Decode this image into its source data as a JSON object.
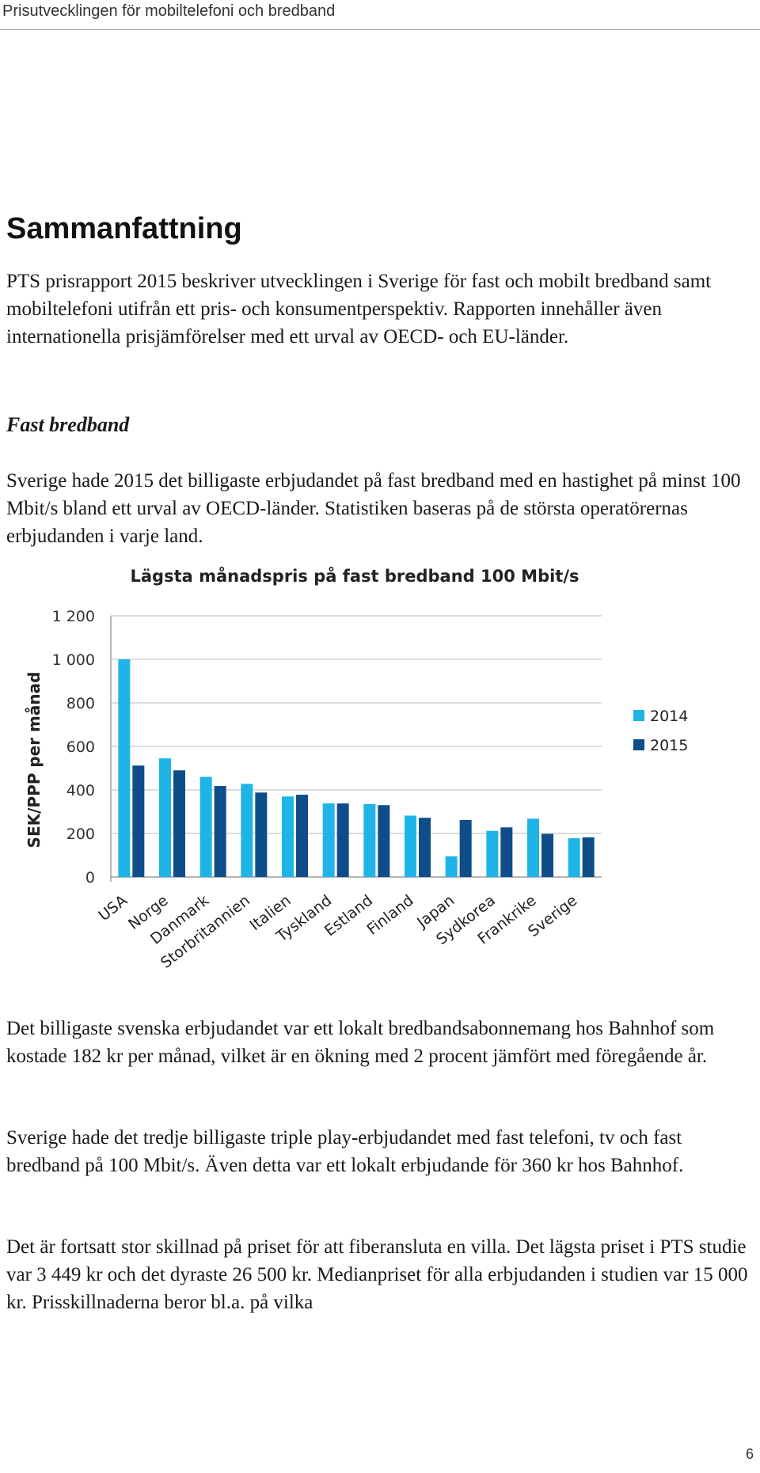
{
  "header": {
    "running_title": "Prisutvecklingen för mobiltelefoni och bredband"
  },
  "section": {
    "title": "Sammanfattning"
  },
  "intro_paragraph": "PTS prisrapport 2015 beskriver utvecklingen i Sverige för fast och mobilt bredband samt mobiltelefoni utifrån ett pris- och konsumentperspektiv. Rapporten innehåller även internationella prisjämförelser med ett urval av OECD- och EU-länder.",
  "subsection": {
    "title": "Fast bredband",
    "paragraph": "Sverige hade 2015 det billigaste erbjudandet på fast bredband med en hastighet på minst 100 Mbit/s bland ett urval av OECD-länder. Statistiken baseras på de största operatörernas erbjudanden i varje land."
  },
  "chart_data": {
    "type": "bar",
    "title": "Lägsta månadspris på fast bredband 100 Mbit/s",
    "ylabel": "SEK/PPP per månad",
    "xlabel": "",
    "ylim": [
      0,
      1200
    ],
    "yticks": [
      0,
      200,
      400,
      600,
      800,
      1000,
      1200
    ],
    "ytick_labels": [
      "0",
      "200",
      "400",
      "600",
      "800",
      "1 000",
      "1 200"
    ],
    "grid": true,
    "legend_position": "right",
    "categories": [
      "USA",
      "Norge",
      "Danmark",
      "Storbritannien",
      "Italien",
      "Tyskland",
      "Estland",
      "Finland",
      "Japan",
      "Sydkorea",
      "Frankrike",
      "Sverige"
    ],
    "series": [
      {
        "name": "2014",
        "color": "#1fb4e8",
        "values": [
          1000,
          545,
          460,
          428,
          370,
          338,
          335,
          282,
          95,
          212,
          268,
          178
        ]
      },
      {
        "name": "2015",
        "color": "#0e4d8a",
        "values": [
          512,
          490,
          418,
          388,
          378,
          338,
          330,
          272,
          262,
          228,
          198,
          182
        ]
      }
    ]
  },
  "body_paragraphs": [
    "Det billigaste svenska erbjudandet var ett lokalt bredbandsabonnemang hos Bahnhof som kostade 182 kr per månad, vilket är en ökning med 2 procent jämfört med föregående år.",
    "Sverige hade det tredje billigaste triple play-erbjudandet med fast telefoni, tv och fast bredband på 100 Mbit/s. Även detta var ett lokalt erbjudande för 360 kr hos Bahnhof.",
    "Det är fortsatt stor skillnad på priset för att fiberansluta en villa. Det lägsta priset i PTS studie var 3 449 kr och det dyraste 26 500 kr. Medianpriset för alla erbjudanden i studien var 15 000 kr. Prisskillnaderna beror bl.a. på vilka"
  ],
  "footer": {
    "page_number": "6"
  }
}
